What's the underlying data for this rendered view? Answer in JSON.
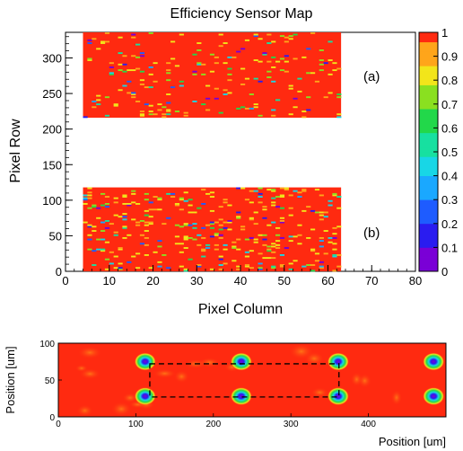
{
  "chart_data": [
    {
      "type": "heatmap",
      "title": "Efficiency Sensor Map",
      "xlabel": "Pixel Column",
      "ylabel": "Pixel Row",
      "xlim": [
        0,
        80
      ],
      "ylim": [
        0,
        336
      ],
      "xticks": [
        0,
        10,
        20,
        30,
        40,
        50,
        60,
        70,
        80
      ],
      "yticks": [
        0,
        50,
        100,
        150,
        200,
        250,
        300
      ],
      "colorbar": {
        "min": 0,
        "max": 1,
        "ticks": [
          "0",
          "0.1",
          "0.2",
          "0.3",
          "0.4",
          "0.5",
          "0.6",
          "0.7",
          "0.8",
          "0.9",
          "1"
        ],
        "colors": [
          "#7a00d6",
          "#2a1cf0",
          "#1e5cff",
          "#1aa8ff",
          "#18d6e6",
          "#17e0a0",
          "#22d84a",
          "#8ae020",
          "#f2e51a",
          "#ffa51a",
          "#ff2a10"
        ]
      },
      "regions": [
        {
          "label": "(a)",
          "col_range": [
            4,
            63
          ],
          "row_range": [
            216,
            336
          ],
          "mean_efficiency": 0.98
        },
        {
          "label": "(b)",
          "col_range": [
            4,
            63
          ],
          "row_range": [
            0,
            118
          ],
          "mean_efficiency": 0.96
        }
      ]
    },
    {
      "type": "heatmap",
      "xlabel": "Position [um]",
      "ylabel": "Position [um]",
      "xlim": [
        0,
        500
      ],
      "ylim": [
        0,
        100
      ],
      "xticks": [
        0,
        100,
        200,
        300,
        400
      ],
      "yticks": [
        0,
        50,
        100
      ],
      "background_efficiency": 0.97,
      "low_efficiency_spots": [
        {
          "x": 112,
          "y": 75
        },
        {
          "x": 236,
          "y": 75
        },
        {
          "x": 361,
          "y": 75
        },
        {
          "x": 484,
          "y": 75
        },
        {
          "x": 112,
          "y": 28
        },
        {
          "x": 236,
          "y": 28
        },
        {
          "x": 361,
          "y": 28
        },
        {
          "x": 484,
          "y": 28
        }
      ],
      "dashed_box": {
        "x_range": [
          118,
          362
        ],
        "y_range": [
          27,
          72
        ]
      }
    }
  ]
}
